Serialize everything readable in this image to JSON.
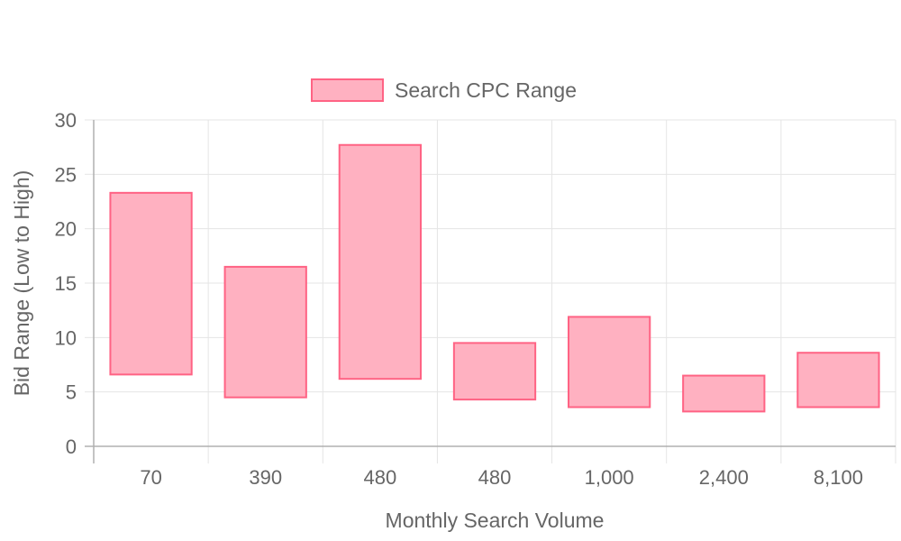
{
  "chart_data": {
    "type": "bar",
    "subtype": "floating-range",
    "categories": [
      "70",
      "390",
      "480",
      "480",
      "1,000",
      "2,400",
      "8,100"
    ],
    "series": [
      {
        "name": "Search CPC Range",
        "ranges": [
          [
            6.6,
            23.3
          ],
          [
            4.5,
            16.5
          ],
          [
            6.2,
            27.7
          ],
          [
            4.3,
            9.5
          ],
          [
            3.6,
            11.9
          ],
          [
            3.2,
            6.5
          ],
          [
            3.6,
            8.6
          ]
        ]
      }
    ],
    "xlabel": "Monthly Search Volume",
    "ylabel": "Bid Range (Low to High)",
    "ylim": [
      0,
      30
    ],
    "yticks": [
      0,
      5,
      10,
      15,
      20,
      25,
      30
    ],
    "grid": true,
    "legend": "top-center",
    "colors": {
      "fill": "#ffb1c1",
      "stroke": "#ff6384",
      "grid": "#e5e5e5",
      "axis": "#b0b0b0",
      "text": "#666666"
    }
  }
}
